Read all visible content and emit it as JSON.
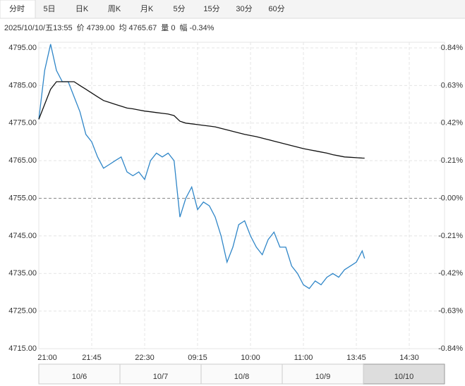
{
  "tabs": [
    "分时",
    "5日",
    "日K",
    "周K",
    "月K",
    "5分",
    "15分",
    "30分",
    "60分"
  ],
  "info": [
    "2025/10/10/五13:55",
    "价 4739.00",
    "均 4765.67",
    "量 0",
    "幅 -0.34%"
  ],
  "chart_data": {
    "type": "line",
    "x": [
      0,
      5,
      10,
      15,
      20,
      25,
      30,
      35,
      40,
      45,
      50,
      55,
      60,
      65,
      70,
      75,
      80,
      85,
      90,
      95,
      100,
      105,
      110,
      115,
      120,
      125,
      130,
      135,
      140,
      145,
      150,
      155,
      160,
      165,
      170,
      175,
      180,
      185,
      190,
      195,
      200,
      205,
      210,
      215,
      220,
      225,
      230,
      235,
      240,
      245,
      250,
      255,
      260,
      265,
      270,
      275,
      277
    ],
    "series": [
      {
        "color": "#2f86c8",
        "values": [
          4776,
          4789,
          4796,
          4789,
          4786,
          4786,
          4782,
          4778,
          4772,
          4770,
          4766,
          4763,
          4764,
          4765,
          4766,
          4762,
          4761,
          4762,
          4760,
          4765,
          4767,
          4766,
          4767,
          4765,
          4750,
          4755,
          4758,
          4752,
          4754,
          4753,
          4750,
          4745,
          4738,
          4742,
          4748,
          4749,
          4745,
          4742,
          4740,
          4744,
          4746,
          4742,
          4742,
          4737,
          4735,
          4732,
          4731,
          4733,
          4732,
          4734,
          4735,
          4734,
          4736,
          4737,
          4738,
          4741,
          4739
        ]
      },
      {
        "color": "#111111",
        "values": [
          4776,
          4780,
          4784,
          4786,
          4786,
          4786,
          4786,
          4785,
          4784,
          4783,
          4782,
          4781,
          4780.5,
          4780,
          4779.5,
          4779,
          4778.8,
          4778.5,
          4778.2,
          4778,
          4777.8,
          4777.6,
          4777.4,
          4777,
          4775.5,
          4775,
          4774.8,
          4774.6,
          4774.4,
          4774.2,
          4774,
          4773.6,
          4773.2,
          4772.8,
          4772.4,
          4772,
          4771.7,
          4771.4,
          4771,
          4770.6,
          4770.2,
          4769.8,
          4769.4,
          4769,
          4768.6,
          4768.2,
          4767.9,
          4767.6,
          4767.3,
          4767,
          4766.6,
          4766.3,
          4766,
          4765.9,
          4765.8,
          4765.7,
          4765.67
        ]
      }
    ],
    "xlim": [
      0,
      345
    ],
    "xticks": [
      {
        "value": 0,
        "label": "21:00"
      },
      {
        "value": 45,
        "label": "21:45"
      },
      {
        "value": 90,
        "label": "22:30"
      },
      {
        "value": 135,
        "label": "09:15"
      },
      {
        "value": 180,
        "label": "10:00"
      },
      {
        "value": 225,
        "label": "11:00"
      },
      {
        "value": 270,
        "label": "13:45"
      },
      {
        "value": 315,
        "label": "14:30"
      }
    ],
    "ylim": [
      4715,
      4795
    ],
    "yticks": [
      {
        "value": 4795,
        "label": "4795.00"
      },
      {
        "value": 4785,
        "label": "4785.00"
      },
      {
        "value": 4775,
        "label": "4775.00"
      },
      {
        "value": 4765,
        "label": "4765.00"
      },
      {
        "value": 4755,
        "label": "4755.00"
      },
      {
        "value": 4745,
        "label": "4745.00"
      },
      {
        "value": 4735,
        "label": "4735.00"
      },
      {
        "value": 4725,
        "label": "4725.00"
      },
      {
        "value": 4715,
        "label": "4715.00"
      }
    ],
    "y2lim": [
      -0.84,
      0.84
    ],
    "y2ticks": [
      {
        "value": 0.84,
        "label": "0.84%"
      },
      {
        "value": 0.63,
        "label": "0.63%"
      },
      {
        "value": 0.42,
        "label": "0.42%"
      },
      {
        "value": 0.21,
        "label": "0.21%"
      },
      {
        "value": 0,
        "label": "0.00%"
      },
      {
        "value": -0.21,
        "label": "-0.21%"
      },
      {
        "value": -0.42,
        "label": "-0.42%"
      },
      {
        "value": -0.63,
        "label": "-0.63%"
      },
      {
        "value": -0.84,
        "label": "-0.84%"
      }
    ],
    "grid": true
  },
  "navigator": {
    "dates": [
      "10/6",
      "10/7",
      "10/8",
      "10/9",
      "10/10"
    ]
  }
}
